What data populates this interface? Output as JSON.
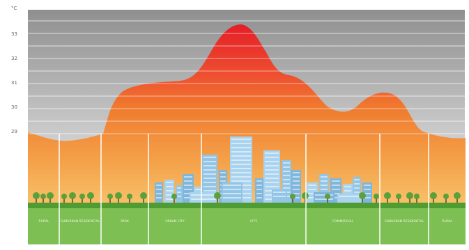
{
  "axis": {
    "unit": "°C",
    "ticks": [
      "33",
      "32",
      "31",
      "30",
      "29"
    ]
  },
  "zones": [
    {
      "label": "RURAL"
    },
    {
      "label": "SUBURBAN RESIDENTIAL"
    },
    {
      "label": "PARK"
    },
    {
      "label": "URBAN CITY"
    },
    {
      "label": "CITY"
    },
    {
      "label": "COMMERCIAL"
    },
    {
      "label": "SUBURBAN RESIDENTIAL"
    },
    {
      "label": "RURAL"
    }
  ],
  "colors": {
    "sky_top": "#8f8f8f",
    "sky_bottom": "#efefef",
    "heat_peak": "#e8202a",
    "heat_mid": "#f07a2e",
    "heat_base": "#f6b45e",
    "ground": "#7dbf52",
    "grass_strip": "#4e9c32",
    "building": "#8ec3e4",
    "tree": "#5aa13c"
  }
}
